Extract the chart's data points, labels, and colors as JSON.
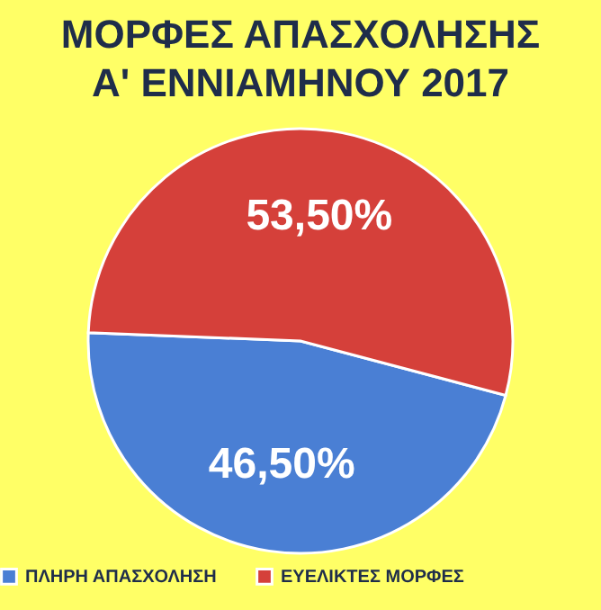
{
  "chart_data": {
    "type": "pie",
    "title": "ΜΟΡΦΕΣ ΑΠΑΣΧΟΛΗΣΗΣ\nΑ' ΕΝΝΙΑΜΗΝΟΥ 2017",
    "categories": [
      "ΠΛΗΡΗ ΑΠΑΣΧΟΛΗΣΗ",
      "ΕΥΕΛΙΚΤΕΣ ΜΟΡΦΕΣ"
    ],
    "values": [
      46.5,
      53.5
    ],
    "colors": [
      "#4a7fd4",
      "#d5403a"
    ],
    "value_labels": [
      "46,50%",
      "53,50%"
    ],
    "legend": "bottom"
  }
}
